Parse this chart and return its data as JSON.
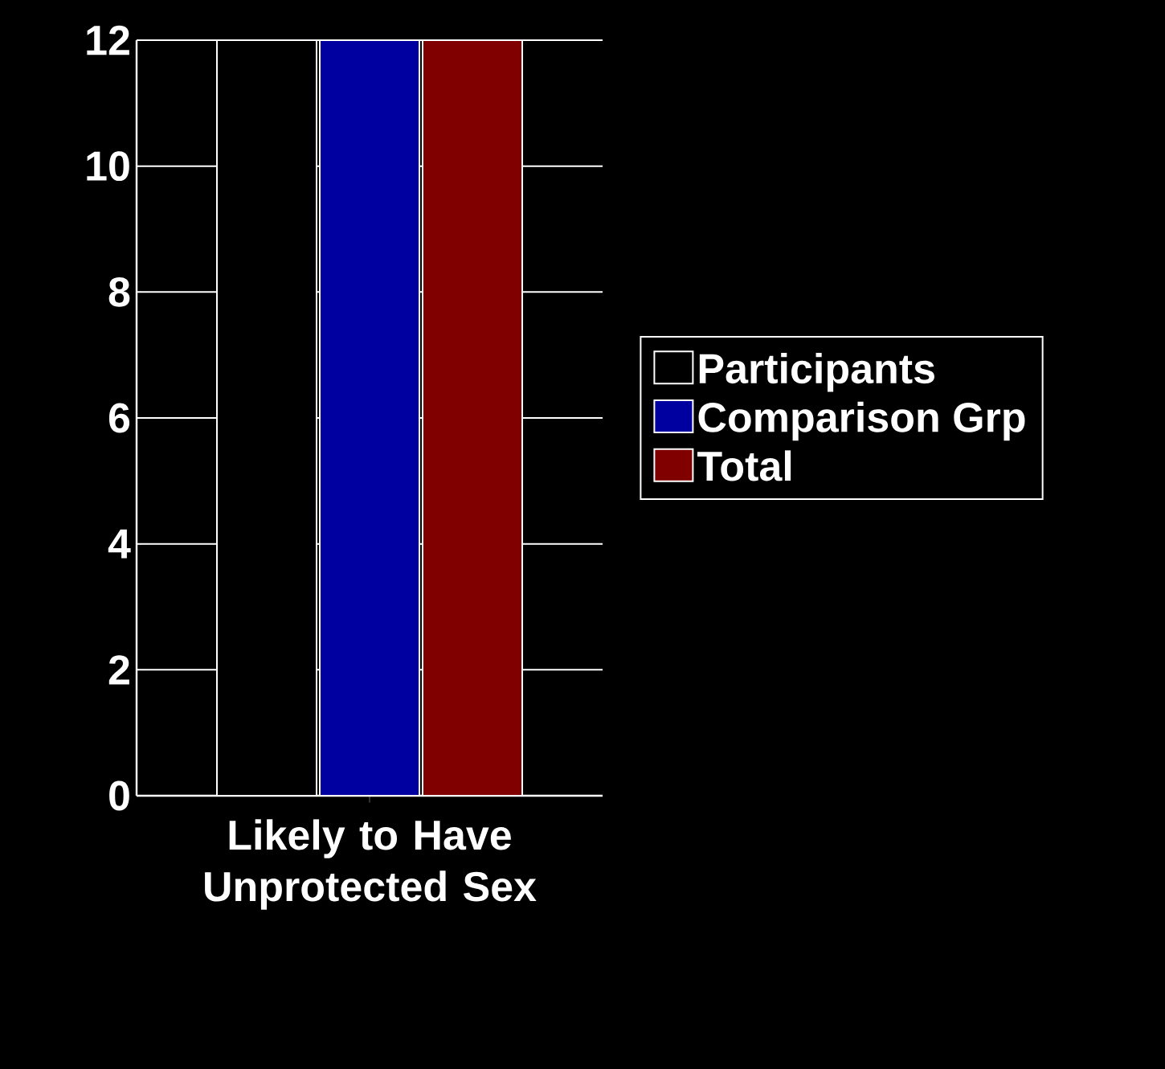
{
  "chart_data": {
    "type": "bar",
    "xlabel": "Likely to Have Unprotected Sex",
    "categories": [
      null
    ],
    "series": [
      {
        "name": "Participants",
        "color": "#000000",
        "values": [
          12
        ]
      },
      {
        "name": "Comparison Grp",
        "color": "#0000a0",
        "values": [
          12
        ]
      },
      {
        "name": "Total",
        "color": "#800000",
        "values": [
          12
        ]
      }
    ],
    "ylim": [
      0,
      12
    ],
    "yticks": [
      0,
      2,
      4,
      6,
      8,
      10,
      12
    ],
    "grid": "y",
    "legend": "right"
  }
}
